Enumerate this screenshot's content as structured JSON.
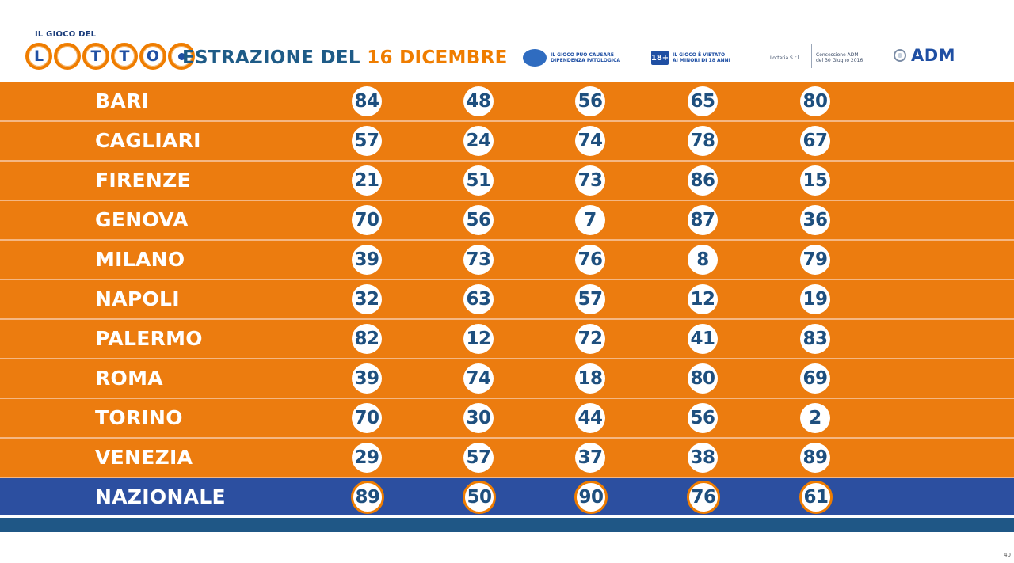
{
  "header": {
    "logo_top": "IL GIOCO DEL",
    "logo_letters": [
      "L",
      "",
      "T",
      "T",
      "O",
      ""
    ],
    "title_prefix": "ESTRAZIONE DEL",
    "title_date": "16 DICEMBRE",
    "warning1": "IL GIOCO PUÒ CAUSARE\nDIPENDENZA PATOLOGICA",
    "warning1_icon": "",
    "warning2_icon": "18+",
    "warning2": "IL GIOCO È VIETATO\nAI MINORI DI 18 ANNI",
    "warning3": "Lotteria S.r.l.",
    "warning4": "Concessione ADM\ndel 30 Giugno 2016",
    "adm_label": "ADM"
  },
  "draws": [
    {
      "city": "BARI",
      "numbers": [
        "84",
        "48",
        "56",
        "65",
        "80"
      ]
    },
    {
      "city": "CAGLIARI",
      "numbers": [
        "57",
        "24",
        "74",
        "78",
        "67"
      ]
    },
    {
      "city": "FIRENZE",
      "numbers": [
        "21",
        "51",
        "73",
        "86",
        "15"
      ]
    },
    {
      "city": "GENOVA",
      "numbers": [
        "70",
        "56",
        "7",
        "87",
        "36"
      ]
    },
    {
      "city": "MILANO",
      "numbers": [
        "39",
        "73",
        "76",
        "8",
        "79"
      ]
    },
    {
      "city": "NAPOLI",
      "numbers": [
        "32",
        "63",
        "57",
        "12",
        "19"
      ]
    },
    {
      "city": "PALERMO",
      "numbers": [
        "82",
        "12",
        "72",
        "41",
        "83"
      ]
    },
    {
      "city": "ROMA",
      "numbers": [
        "39",
        "74",
        "18",
        "80",
        "69"
      ]
    },
    {
      "city": "TORINO",
      "numbers": [
        "70",
        "30",
        "44",
        "56",
        "2"
      ]
    },
    {
      "city": "VENEZIA",
      "numbers": [
        "29",
        "57",
        "37",
        "38",
        "89"
      ]
    }
  ],
  "national": {
    "city": "NAZIONALE",
    "numbers": [
      "89",
      "50",
      "90",
      "76",
      "61"
    ]
  },
  "corner_label": "40",
  "colors": {
    "orange": "#ec7c0f",
    "blue": "#2c4fa0",
    "title_blue": "#1e5b87",
    "number_blue": "#1e4f7e"
  }
}
